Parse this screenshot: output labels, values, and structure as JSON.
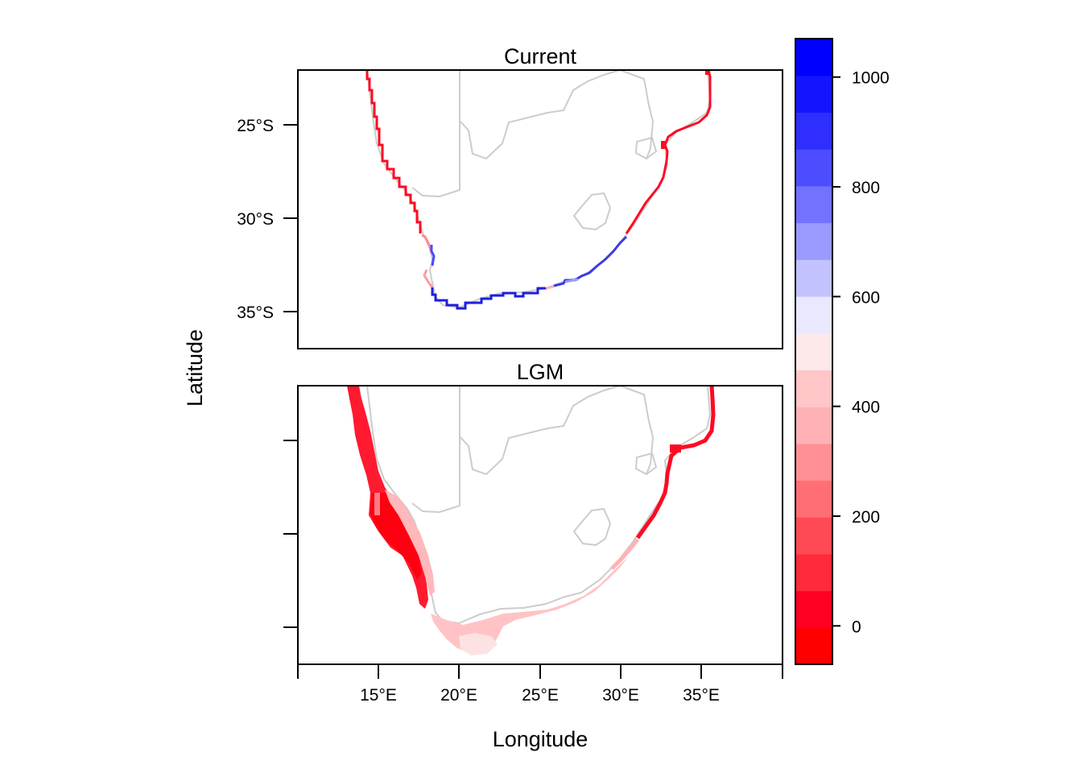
{
  "panels": [
    {
      "id": "current",
      "title": "Current"
    },
    {
      "id": "lgm",
      "title": "LGM"
    }
  ],
  "axes": {
    "xlabel": "Longitude",
    "ylabel": "Latitude",
    "x_ticks": [
      "15°E",
      "20°E",
      "25°E",
      "30°E",
      "35°E"
    ],
    "y_ticks": [
      "25°S",
      "30°S",
      "35°S"
    ]
  },
  "colorbar": {
    "ticks": [
      "0",
      "200",
      "400",
      "600",
      "800",
      "1000"
    ],
    "range": [
      -70,
      1070
    ],
    "palette": [
      "#ff0000",
      "#ff0022",
      "#ff2a3a",
      "#ff4a55",
      "#ff6e74",
      "#ff9094",
      "#ffb2b5",
      "#ffc6c8",
      "#fde8ea",
      "#eae8ff",
      "#c2c2ff",
      "#9a9aff",
      "#7272ff",
      "#4d4dff",
      "#2e2eff",
      "#1414ff",
      "#0000ff"
    ]
  },
  "colors": {
    "coastline": "#cccccc",
    "current_west_coast": "#ff0a24",
    "current_south_coast": "#2424e6",
    "lgm_west_shelf": "#ff0022",
    "lgm_south_shelf": "#ffc6c8"
  },
  "chart_data": [
    {
      "type": "heatmap",
      "title": "Current",
      "xlabel": "Longitude",
      "ylabel": "Latitude",
      "xlim": [
        10,
        40
      ],
      "ylim": [
        -37,
        -22
      ],
      "x_ticks": [
        15,
        20,
        25,
        30,
        35
      ],
      "y_ticks": [
        -25,
        -30,
        -35
      ],
      "value_range": [
        -70,
        1070
      ],
      "colorbar_ticks": [
        0,
        200,
        400,
        600,
        800,
        1000
      ]
    },
    {
      "type": "heatmap",
      "title": "LGM",
      "xlabel": "Longitude",
      "ylabel": "Latitude",
      "xlim": [
        10,
        40
      ],
      "ylim": [
        -37,
        -22
      ],
      "x_ticks": [
        15,
        20,
        25,
        30,
        35
      ],
      "y_ticks": [
        -25,
        -30,
        -35
      ],
      "value_range": [
        -70,
        1070
      ],
      "colorbar_ticks": [
        0,
        200,
        400,
        600,
        800,
        1000
      ]
    }
  ]
}
